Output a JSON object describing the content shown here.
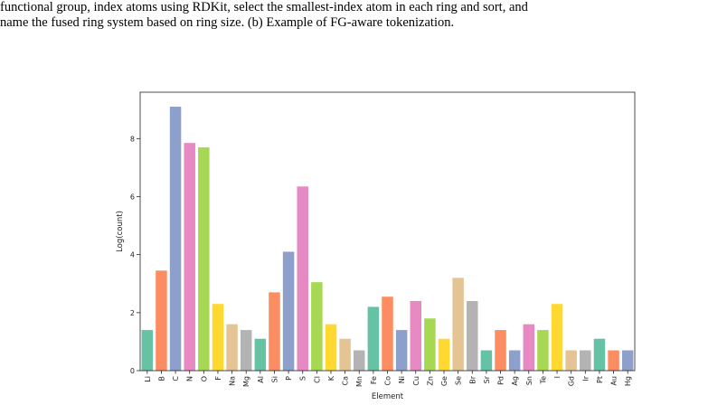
{
  "caption": {
    "line1": "functional group, index atoms using RDKit, select the smallest-index atom in each ring and sort, and",
    "line2": "name the fused ring system based on ring size. (b) Example of FG-aware tokenization."
  },
  "chart_data": {
    "type": "bar",
    "xlabel": "Element",
    "ylabel": "Log(count)",
    "ylim": [
      0,
      9.6
    ],
    "yticks": [
      0,
      2,
      4,
      6,
      8
    ],
    "grid": false,
    "categories": [
      "Li",
      "B",
      "C",
      "N",
      "O",
      "F",
      "Na",
      "Mg",
      "Al",
      "Si",
      "P",
      "S",
      "Cl",
      "K",
      "Ca",
      "Mn",
      "Fe",
      "Co",
      "Ni",
      "Cu",
      "Zn",
      "Ge",
      "Se",
      "Br",
      "Sr",
      "Pd",
      "Ag",
      "Sn",
      "Te",
      "I",
      "Gd",
      "Ir",
      "Pt",
      "Au",
      "Hg"
    ],
    "values": [
      1.4,
      3.45,
      9.1,
      7.85,
      7.7,
      2.3,
      1.6,
      1.4,
      1.1,
      2.7,
      4.1,
      6.35,
      3.05,
      1.6,
      1.1,
      0.7,
      2.2,
      2.55,
      1.4,
      2.4,
      1.8,
      1.1,
      3.2,
      2.4,
      0.7,
      1.4,
      0.7,
      1.6,
      1.4,
      2.3,
      0.7,
      0.7,
      1.1,
      0.7,
      0.7
    ],
    "colors": [
      "#66c2a5",
      "#fc8d62",
      "#8da0cb",
      "#e78ac3",
      "#a6d854",
      "#ffd92f",
      "#e5c494",
      "#b3b3b3"
    ]
  }
}
